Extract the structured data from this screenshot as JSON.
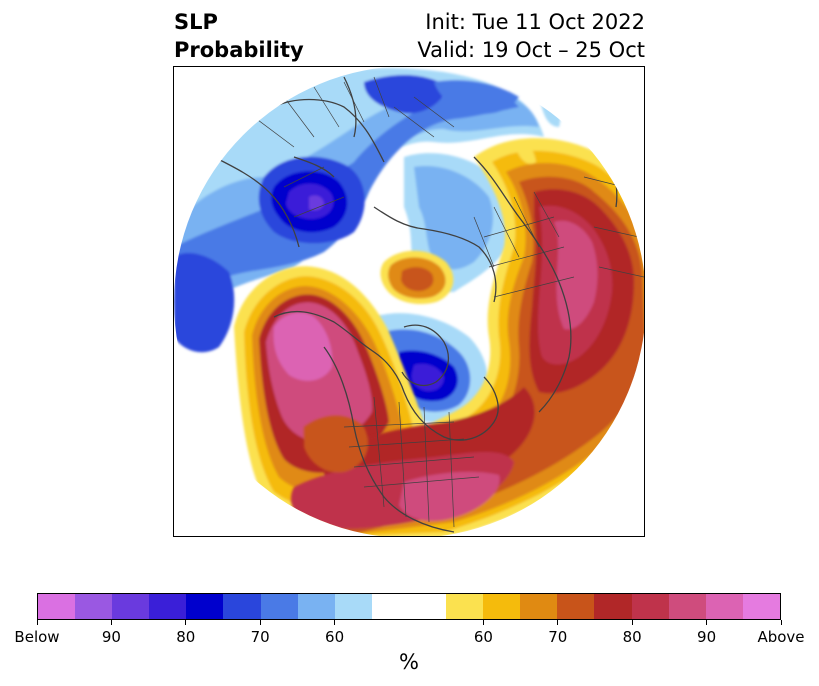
{
  "title": {
    "left_line1": "SLP",
    "left_line2": "Probability",
    "right_line1": "Init: Tue 11 Oct 2022",
    "right_line2": "Valid: 19 Oct – 25 Oct"
  },
  "map": {
    "projection": "north polar stereographic",
    "colors": {
      "below90": "#3a1fd8",
      "below80": "#0000cd",
      "below70": "#2a46dc",
      "below60": "#4a7ae6",
      "below_light": "#79b2f2",
      "below_pale": "#a8daf8",
      "above_pale": "#fbe14f",
      "above60": "#f5bb0c",
      "above65": "#e08a12",
      "above70": "#c8541a",
      "above75": "#b12728",
      "above80": "#bf334b",
      "above85": "#cf4c7d",
      "above90": "#dc63b3",
      "border": "#404040"
    }
  },
  "colorbar": {
    "colors": [
      "#da70e2",
      "#9a58e2",
      "#6a3ade",
      "#3a1fd8",
      "#0000cd",
      "#2a46dc",
      "#4a7ae6",
      "#79b2f2",
      "#a8daf8",
      "#ffffff",
      "#ffffff",
      "#fbe14f",
      "#f5bb0c",
      "#e08a12",
      "#c8541a",
      "#b12728",
      "#bf334b",
      "#cf4c7d",
      "#dc63b3",
      "#e57be0"
    ],
    "ticks": [
      "Below",
      "90",
      "80",
      "70",
      "60",
      "60",
      "70",
      "80",
      "90",
      "Above"
    ],
    "unit": "%"
  }
}
